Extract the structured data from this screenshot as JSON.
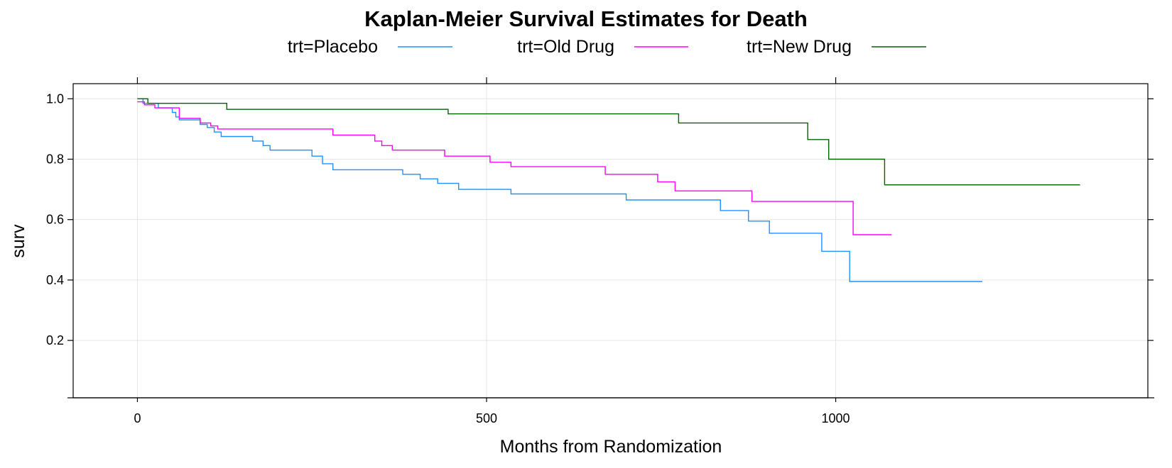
{
  "chart_data": {
    "type": "line",
    "step": true,
    "title": "Kaplan-Meier Survival Estimates for Death",
    "xlabel": "Months from Randomization",
    "ylabel": "surv",
    "xlim": [
      -92,
      1447
    ],
    "ylim": [
      0.01,
      1.05
    ],
    "xticks": [
      0,
      500,
      1000
    ],
    "xtick_labels": [
      "0",
      "500",
      "1000"
    ],
    "yticks": [
      0.2,
      0.4,
      0.6,
      0.8,
      1.0
    ],
    "ytick_labels": [
      "0.2",
      "0.4",
      "0.6",
      "0.8",
      "1.0"
    ],
    "grid": true,
    "legend_position": "top",
    "series": [
      {
        "name": "trt=Placebo",
        "color": "#1e90ff",
        "x": [
          0,
          8,
          30,
          50,
          55,
          60,
          90,
          100,
          110,
          120,
          135,
          165,
          180,
          190,
          250,
          265,
          280,
          380,
          405,
          430,
          460,
          535,
          700,
          835,
          875,
          905,
          980,
          1020,
          1210
        ],
        "y": [
          1.0,
          0.985,
          0.97,
          0.955,
          0.94,
          0.93,
          0.915,
          0.905,
          0.89,
          0.875,
          0.875,
          0.86,
          0.845,
          0.83,
          0.81,
          0.785,
          0.765,
          0.75,
          0.735,
          0.72,
          0.7,
          0.685,
          0.665,
          0.63,
          0.595,
          0.555,
          0.495,
          0.395,
          0.395
        ]
      },
      {
        "name": "trt=Old Drug",
        "color": "#ff00ff",
        "x": [
          0,
          10,
          25,
          60,
          90,
          105,
          115,
          125,
          280,
          340,
          350,
          365,
          440,
          505,
          535,
          670,
          745,
          770,
          880,
          1025,
          1080
        ],
        "y": [
          0.99,
          0.98,
          0.97,
          0.935,
          0.92,
          0.91,
          0.9,
          0.9,
          0.88,
          0.86,
          0.845,
          0.83,
          0.81,
          0.79,
          0.775,
          0.75,
          0.725,
          0.695,
          0.66,
          0.55,
          0.55
        ]
      },
      {
        "name": "trt=New Drug",
        "color": "#006400",
        "x": [
          0,
          15,
          128,
          445,
          775,
          960,
          990,
          1070,
          1350
        ],
        "y": [
          1.0,
          0.985,
          0.965,
          0.95,
          0.92,
          0.865,
          0.8,
          0.715,
          0.715
        ]
      }
    ]
  }
}
